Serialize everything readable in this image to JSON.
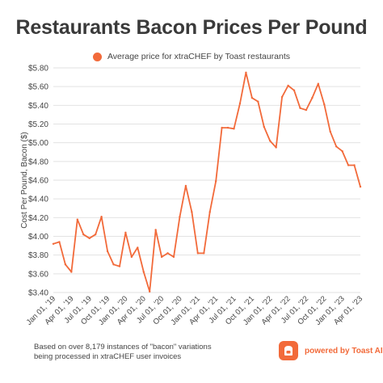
{
  "header": {
    "title": "Restaurants Bacon Prices Per Pound"
  },
  "legend": {
    "label": "Average price for xtraCHEF by Toast restaurants"
  },
  "footer": {
    "note": "Based on over 8,179 instances of \"bacon\" variations being processed in xtraCHEF user invoices",
    "powered_by": "powered by Toast AI",
    "logo_icon": "toast-logo-icon"
  },
  "colors": {
    "line": "#f26a3a",
    "accent": "#f26a3a",
    "grid": "#e2e2e2",
    "text": "#444444"
  },
  "chart_data": {
    "type": "line",
    "title": "Restaurants Bacon Prices Per Pound",
    "ylabel": "Cost Per Pound, Bacon ($)",
    "xlabel": "",
    "ylim": [
      3.4,
      5.8
    ],
    "y_ticks": [
      "$3.40",
      "$3.60",
      "$3.80",
      "$4.00",
      "$4.20",
      "$4.40",
      "$4.60",
      "$4.80",
      "$5.00",
      "$5.20",
      "$5.40",
      "$5.60",
      "$5.80"
    ],
    "y_tick_values": [
      3.4,
      3.6,
      3.8,
      4.0,
      4.2,
      4.4,
      4.6,
      4.8,
      5.0,
      5.2,
      5.4,
      5.6,
      5.8
    ],
    "x_tick_labels": [
      "Jan 01, '19",
      "Apr 01, '19",
      "Jul 01, '19",
      "Oct 01, '19",
      "Jan 01, '20",
      "Apr 01, '20",
      "Jul 01, '20",
      "Oct 01, '20",
      "Jan 01, '21",
      "Apr 01, '21",
      "Jul 01, '21",
      "Oct 01, '21",
      "Jan 01, '22",
      "Apr 01, '22",
      "Jul 01, '22",
      "Oct 01, '22",
      "Jan 01, '23",
      "Apr 01, '23"
    ],
    "grid": true,
    "legend_position": "top-center",
    "series": [
      {
        "name": "Average price for xtraCHEF by Toast restaurants",
        "x": [
          "2019-01",
          "2019-02",
          "2019-03",
          "2019-04",
          "2019-05",
          "2019-06",
          "2019-07",
          "2019-08",
          "2019-09",
          "2019-10",
          "2019-11",
          "2019-12",
          "2020-01",
          "2020-02",
          "2020-03",
          "2020-04",
          "2020-05",
          "2020-06",
          "2020-07",
          "2020-08",
          "2020-09",
          "2020-10",
          "2020-11",
          "2020-12",
          "2021-01",
          "2021-02",
          "2021-03",
          "2021-04",
          "2021-05",
          "2021-06",
          "2021-07",
          "2021-08",
          "2021-09",
          "2021-10",
          "2021-11",
          "2021-12",
          "2022-01",
          "2022-02",
          "2022-03",
          "2022-04",
          "2022-05",
          "2022-06",
          "2022-07",
          "2022-08",
          "2022-09",
          "2022-10",
          "2022-11",
          "2022-12",
          "2023-01",
          "2023-02",
          "2023-03",
          "2023-04"
        ],
        "values": [
          3.92,
          3.94,
          3.7,
          3.62,
          4.18,
          4.02,
          3.98,
          4.02,
          4.21,
          3.84,
          3.7,
          3.68,
          4.04,
          3.78,
          3.88,
          3.62,
          3.41,
          4.07,
          3.78,
          3.82,
          3.78,
          4.21,
          4.54,
          4.26,
          3.82,
          3.82,
          4.26,
          4.59,
          5.16,
          5.16,
          5.15,
          5.42,
          5.75,
          5.48,
          5.44,
          5.17,
          5.02,
          4.95,
          5.49,
          5.61,
          5.56,
          5.37,
          5.35,
          5.48,
          5.63,
          5.41,
          5.12,
          4.96,
          4.91,
          4.76,
          4.76,
          4.53
        ]
      }
    ]
  }
}
